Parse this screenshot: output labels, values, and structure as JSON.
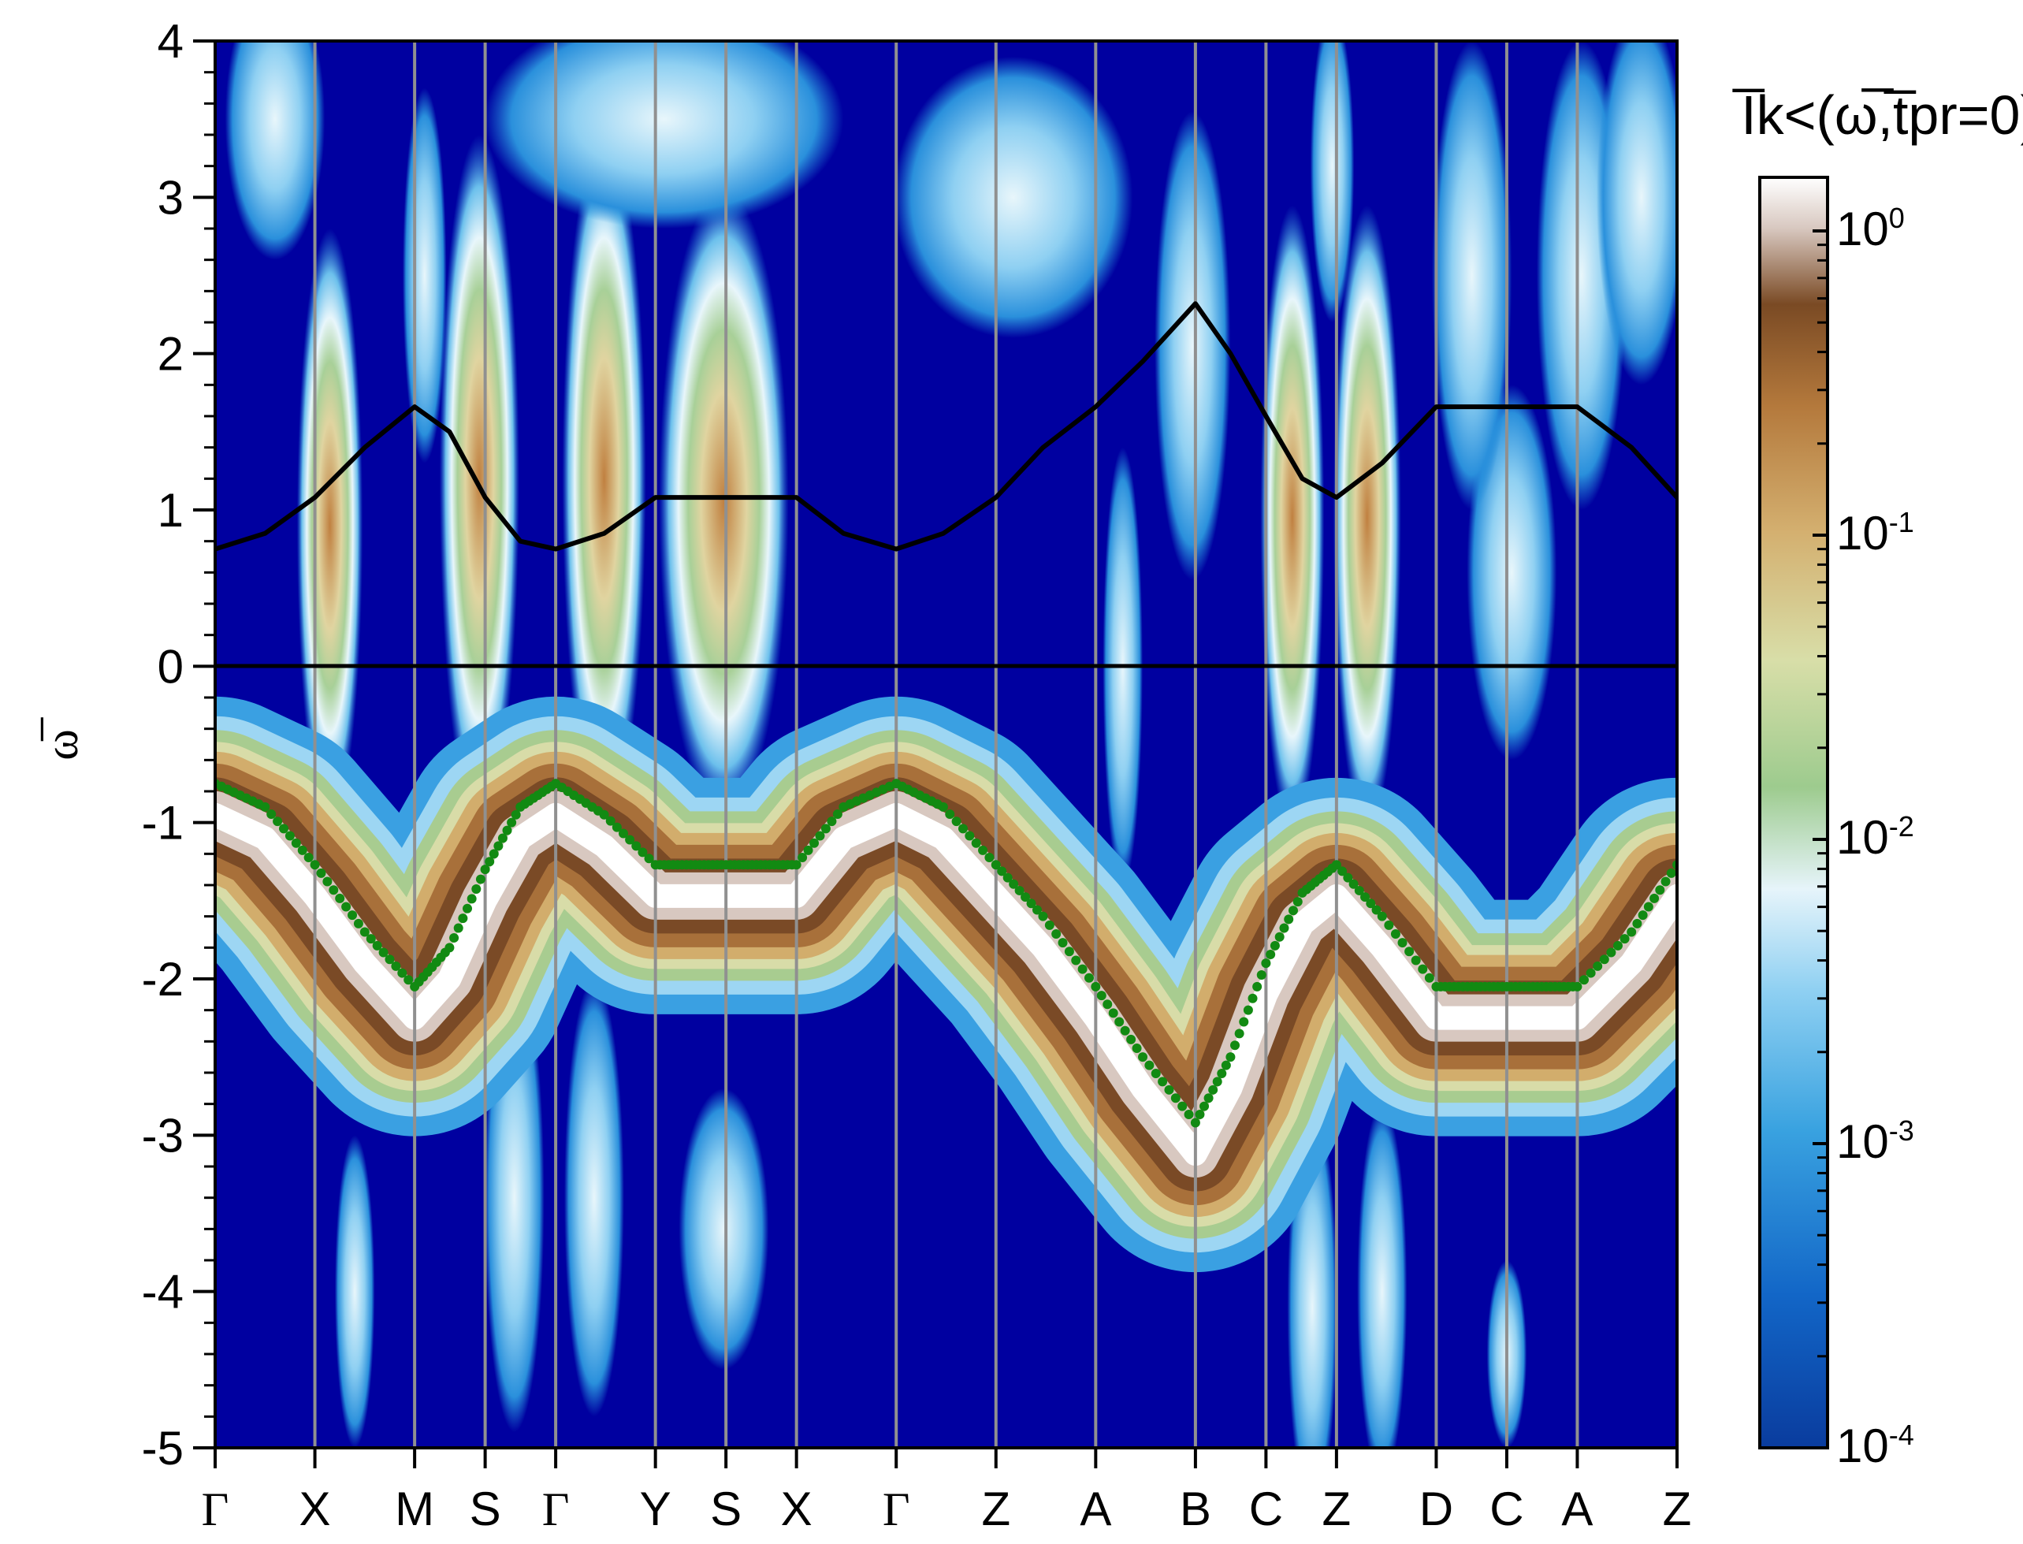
{
  "chart_data": {
    "type": "heatmap",
    "title": "",
    "colorbar_label": "I̅k<(ω̅,t̅pr=0)",
    "xlabel": "",
    "ylabel": "ω̅",
    "ylim": [
      -5,
      4
    ],
    "yticks": [
      -5,
      -4,
      -3,
      -2,
      -1,
      0,
      1,
      2,
      3,
      4
    ],
    "k_labels": [
      "Γ",
      "X",
      "M",
      "S",
      "Γ",
      "Y",
      "S",
      "X",
      "Γ",
      "Z",
      "A",
      "B",
      "C",
      "Z",
      "D",
      "C",
      "A",
      "Z"
    ],
    "k_positions": [
      0,
      1,
      2,
      2.7071,
      3.4142,
      4.4142,
      5.1213,
      5.8284,
      6.8284,
      7.8284,
      8.8284,
      9.8284,
      10.5355,
      11.2426,
      12.2426,
      12.9497,
      13.6569,
      14.6569
    ],
    "colorbar": {
      "scale": "log",
      "range": [
        0.0001,
        1.5
      ],
      "ticks": [
        "10^0",
        "10^-1",
        "10^-2",
        "10^-3",
        "10^-4"
      ],
      "tick_values": [
        1,
        0.1,
        0.01,
        0.001,
        0.0001
      ]
    },
    "grid": "vertical lines at high-symmetry points",
    "zero_line": true,
    "series": [
      {
        "style": "black-line",
        "x": [
          0,
          0.5,
          1,
          1.5,
          2,
          2.35,
          2.7071,
          3.06,
          3.4142,
          3.9,
          4.4142,
          4.77,
          5.1213,
          5.47,
          5.8284,
          6.3,
          6.8284,
          7.3,
          7.8284,
          8.3,
          8.8284,
          9.3,
          9.8284,
          10.18,
          10.5355,
          10.9,
          11.2426,
          11.7,
          12.2426,
          12.6,
          12.9497,
          13.3,
          13.6569,
          14.2,
          14.6569
        ],
        "y": [
          0.75,
          0.85,
          1.08,
          1.4,
          1.66,
          1.5,
          1.08,
          0.8,
          0.75,
          0.85,
          1.08,
          1.08,
          1.08,
          1.08,
          1.08,
          0.85,
          0.75,
          0.85,
          1.08,
          1.4,
          1.66,
          1.95,
          2.32,
          2.0,
          1.6,
          1.2,
          1.08,
          1.3,
          1.66,
          1.66,
          1.66,
          1.66,
          1.66,
          1.4,
          1.08
        ]
      },
      {
        "style": "green-dots",
        "x": [
          0,
          0.5,
          1,
          1.5,
          2,
          2.35,
          2.7071,
          3.06,
          3.4142,
          3.9,
          4.4142,
          4.77,
          5.1213,
          5.47,
          5.8284,
          6.3,
          6.8284,
          7.3,
          7.8284,
          8.3,
          8.8284,
          9.3,
          9.8284,
          10.18,
          10.5355,
          10.9,
          11.2426,
          11.7,
          12.2426,
          12.6,
          12.9497,
          13.3,
          13.6569,
          14.2,
          14.6569
        ],
        "y": [
          -0.75,
          -0.9,
          -1.27,
          -1.7,
          -2.05,
          -1.8,
          -1.3,
          -0.9,
          -0.75,
          -0.95,
          -1.27,
          -1.27,
          -1.27,
          -1.27,
          -1.27,
          -0.9,
          -0.75,
          -0.9,
          -1.27,
          -1.6,
          -2.05,
          -2.5,
          -2.92,
          -2.5,
          -1.9,
          -1.45,
          -1.27,
          -1.6,
          -2.05,
          -2.05,
          -2.05,
          -2.05,
          -2.05,
          -1.7,
          -1.27
        ]
      }
    ]
  }
}
